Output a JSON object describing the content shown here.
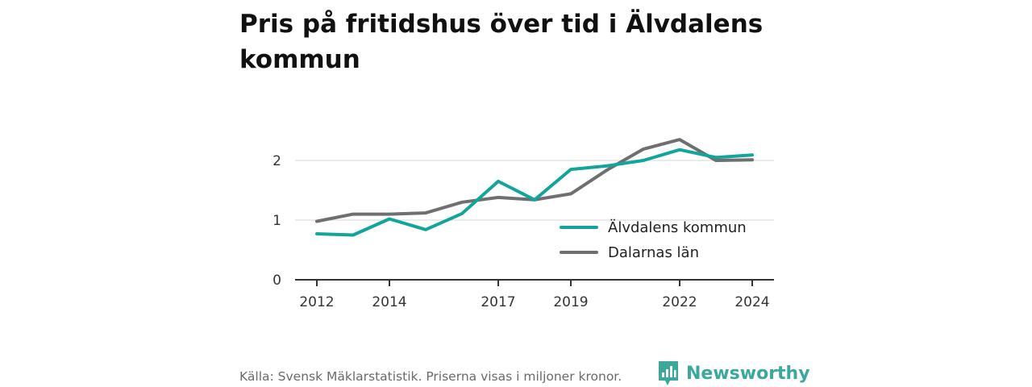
{
  "title": "Pris på fritidshus över tid i Älvdalens kommun",
  "footer": {
    "source": "Källa: Svensk Mäklarstatistik. Priserna visas i miljoner kronor.",
    "brand": "Newsworthy",
    "brand_icon": "newsworthy-logo-icon"
  },
  "colors": {
    "series_1": "#11a59b",
    "series_2": "#6f6f72",
    "grid": "#dddddd",
    "axis": "#333333",
    "brand": "#3aa89a"
  },
  "chart_data": {
    "type": "line",
    "title": "Pris på fritidshus över tid i Älvdalens kommun",
    "xlabel": "",
    "ylabel": "",
    "xlim": [
      2012,
      2024
    ],
    "ylim": [
      0,
      2.5
    ],
    "x_ticks": [
      2012,
      2014,
      2017,
      2019,
      2022,
      2024
    ],
    "y_ticks": [
      0,
      1,
      2
    ],
    "grid": true,
    "legend_position": "bottom-right",
    "series": [
      {
        "name": "Älvdalens kommun",
        "x": [
          2012,
          2013,
          2014,
          2015,
          2016,
          2017,
          2018,
          2019,
          2020,
          2021,
          2022,
          2023,
          2024
        ],
        "values": [
          0.77,
          0.75,
          1.02,
          0.84,
          1.11,
          1.65,
          1.34,
          1.85,
          1.91,
          2.0,
          2.18,
          2.05,
          2.09
        ]
      },
      {
        "name": "Dalarnas län",
        "x": [
          2012,
          2013,
          2014,
          2015,
          2016,
          2017,
          2018,
          2019,
          2020,
          2021,
          2022,
          2023,
          2024
        ],
        "values": [
          0.98,
          1.1,
          1.1,
          1.12,
          1.3,
          1.38,
          1.34,
          1.44,
          1.84,
          2.19,
          2.35,
          2.0,
          2.01
        ]
      }
    ]
  }
}
